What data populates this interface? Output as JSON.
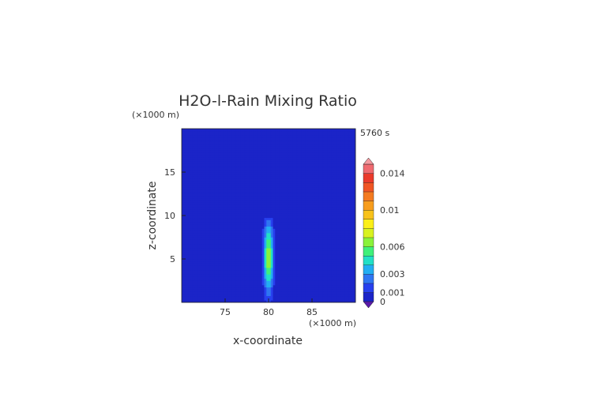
{
  "chart_data": {
    "type": "heatmap",
    "title": "H2O-l-Rain Mixing Ratio",
    "time_label": "5760 s",
    "xlabel": "x-coordinate",
    "ylabel": "z-coordinate",
    "x_unit": "(×1000 m)",
    "z_unit": "(×1000 m)",
    "xlim": [
      70,
      90
    ],
    "zlim": [
      0,
      20
    ],
    "x_ticks": [
      75,
      80,
      85
    ],
    "z_ticks": [
      5,
      10,
      15
    ],
    "colorbar": {
      "levels": [
        0,
        0.001,
        0.002,
        0.003,
        0.004,
        0.005,
        0.006,
        0.007,
        0.008,
        0.009,
        0.01,
        0.011,
        0.012,
        0.013,
        0.014,
        0.015
      ],
      "tick_labels": [
        "0",
        "0.001",
        "0.003",
        "0.006",
        "0.01",
        "0.014"
      ],
      "tick_values": [
        0,
        0.001,
        0.003,
        0.006,
        0.01,
        0.014
      ],
      "colors": [
        "#1b24c8",
        "#2740ee",
        "#2f76f2",
        "#23aef2",
        "#22e0c6",
        "#3ff07a",
        "#8af23a",
        "#d8f21f",
        "#fbef17",
        "#f8c21a",
        "#f79d1d",
        "#f47b20",
        "#f05524",
        "#ea3a2b",
        "#f06a70"
      ],
      "under_color": "#5a1aa8",
      "over_color": "#f49aa0"
    },
    "field": {
      "background": 0.0002,
      "column": {
        "x_center": 80,
        "x_halfwidth": 0.7,
        "z_bottom": 0,
        "z_top": 9.8,
        "peak": 0.0068,
        "peak_z": 5.2
      },
      "outflow_band": {
        "z_min": 7,
        "z_max": 13.5,
        "value": 0.0004
      }
    }
  }
}
